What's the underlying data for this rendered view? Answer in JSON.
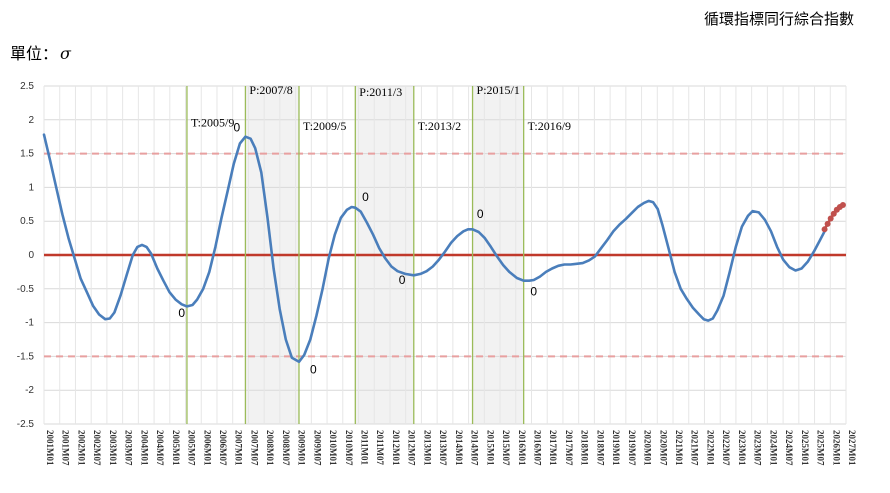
{
  "header": {
    "title": "循環指標同行綜合指數",
    "unit_label": "單位：",
    "unit_symbol": "σ"
  },
  "chart_data": {
    "type": "line",
    "ylim": [
      -2.5,
      2.5
    ],
    "yticks": [
      "2.5",
      "2",
      "1.5",
      "1",
      "0.5",
      "0",
      "-0.5",
      "-1",
      "-1.5",
      "-2",
      "-2.5"
    ],
    "grid": true,
    "x_labels": [
      "2001M01",
      "2001M07",
      "2002M01",
      "2002M07",
      "2003M01",
      "2003M07",
      "2004M01",
      "2004M07",
      "2005M01",
      "2005M07",
      "2006M01",
      "2006M07",
      "2007M01",
      "2007M07",
      "2008M01",
      "2008M07",
      "2009M01",
      "2009M07",
      "2010M01",
      "2010M07",
      "2011M01",
      "2011M07",
      "2012M01",
      "2012M07",
      "2013M01",
      "2013M07",
      "2014M01",
      "2014M07",
      "2015M01",
      "2015M07",
      "2016M01",
      "2016M07",
      "2017M01",
      "2017M07",
      "2018M01",
      "2018M07",
      "2019M01",
      "2019M07",
      "2020M01",
      "2020M07",
      "2021M01",
      "2021M07",
      "2022M01",
      "2022M07",
      "2023M01",
      "2023M07",
      "2024M01",
      "2024M07",
      "2025M01",
      "2025M07",
      "2026M01",
      "2027M01"
    ],
    "reference_lines": [
      {
        "y": 0,
        "color": "#c0392b",
        "style": "solid"
      },
      {
        "y": 1.5,
        "color": "#e8a0a0",
        "style": "dashed"
      },
      {
        "y": -1.5,
        "color": "#e8a0a0",
        "style": "dashed"
      }
    ],
    "shaded_periods": [
      {
        "from": 2007.58,
        "to": 2009.33
      },
      {
        "from": 2011.17,
        "to": 2013.08
      },
      {
        "from": 2015.0,
        "to": 2016.67
      }
    ],
    "turning_points": [
      {
        "x": 2005.67,
        "label": "T:2005/9",
        "label_y": 1.9
      },
      {
        "x": 2007.58,
        "label": "P:2007/8",
        "label_y": 2.38
      },
      {
        "x": 2009.33,
        "label": "T:2009/5",
        "label_y": 1.85
      },
      {
        "x": 2011.17,
        "label": "P:2011/3",
        "label_y": 2.35
      },
      {
        "x": 2013.08,
        "label": "T:2013/2",
        "label_y": 1.85
      },
      {
        "x": 2015.0,
        "label": "P:2015/1",
        "label_y": 2.38
      },
      {
        "x": 2016.67,
        "label": "T:2016/9",
        "label_y": 1.85
      }
    ],
    "point_labels": [
      {
        "x": 2005.5,
        "y": -0.92,
        "text": "0"
      },
      {
        "x": 2007.3,
        "y": 1.83,
        "text": "0"
      },
      {
        "x": 2009.8,
        "y": -1.75,
        "text": "0"
      },
      {
        "x": 2011.5,
        "y": 0.8,
        "text": "0"
      },
      {
        "x": 2012.7,
        "y": -0.43,
        "text": "0"
      },
      {
        "x": 2015.25,
        "y": 0.55,
        "text": "0"
      },
      {
        "x": 2017.0,
        "y": -0.6,
        "text": "0"
      }
    ],
    "series": [
      {
        "color": "#4a7ebb",
        "points": [
          [
            2001.0,
            1.78
          ],
          [
            2001.2,
            1.4
          ],
          [
            2001.4,
            1.0
          ],
          [
            2001.6,
            0.6
          ],
          [
            2001.8,
            0.25
          ],
          [
            2002.0,
            -0.05
          ],
          [
            2002.2,
            -0.35
          ],
          [
            2002.4,
            -0.55
          ],
          [
            2002.6,
            -0.75
          ],
          [
            2002.8,
            -0.88
          ],
          [
            2003.0,
            -0.95
          ],
          [
            2003.15,
            -0.94
          ],
          [
            2003.3,
            -0.85
          ],
          [
            2003.5,
            -0.6
          ],
          [
            2003.7,
            -0.3
          ],
          [
            2003.9,
            0.0
          ],
          [
            2004.05,
            0.12
          ],
          [
            2004.2,
            0.15
          ],
          [
            2004.35,
            0.12
          ],
          [
            2004.5,
            0.02
          ],
          [
            2004.7,
            -0.2
          ],
          [
            2004.9,
            -0.38
          ],
          [
            2005.1,
            -0.55
          ],
          [
            2005.3,
            -0.66
          ],
          [
            2005.5,
            -0.73
          ],
          [
            2005.67,
            -0.76
          ],
          [
            2005.85,
            -0.74
          ],
          [
            2006.0,
            -0.66
          ],
          [
            2006.2,
            -0.5
          ],
          [
            2006.4,
            -0.25
          ],
          [
            2006.6,
            0.12
          ],
          [
            2006.8,
            0.55
          ],
          [
            2007.0,
            0.95
          ],
          [
            2007.2,
            1.35
          ],
          [
            2007.4,
            1.65
          ],
          [
            2007.58,
            1.75
          ],
          [
            2007.75,
            1.72
          ],
          [
            2007.9,
            1.58
          ],
          [
            2008.1,
            1.22
          ],
          [
            2008.3,
            0.55
          ],
          [
            2008.5,
            -0.2
          ],
          [
            2008.7,
            -0.8
          ],
          [
            2008.9,
            -1.25
          ],
          [
            2009.1,
            -1.52
          ],
          [
            2009.33,
            -1.58
          ],
          [
            2009.5,
            -1.48
          ],
          [
            2009.7,
            -1.25
          ],
          [
            2009.9,
            -0.9
          ],
          [
            2010.1,
            -0.5
          ],
          [
            2010.3,
            -0.05
          ],
          [
            2010.5,
            0.3
          ],
          [
            2010.7,
            0.55
          ],
          [
            2010.9,
            0.67
          ],
          [
            2011.05,
            0.71
          ],
          [
            2011.17,
            0.7
          ],
          [
            2011.35,
            0.64
          ],
          [
            2011.55,
            0.48
          ],
          [
            2011.75,
            0.3
          ],
          [
            2011.95,
            0.1
          ],
          [
            2012.15,
            -0.05
          ],
          [
            2012.35,
            -0.17
          ],
          [
            2012.55,
            -0.24
          ],
          [
            2012.8,
            -0.28
          ],
          [
            2013.08,
            -0.3
          ],
          [
            2013.3,
            -0.28
          ],
          [
            2013.5,
            -0.24
          ],
          [
            2013.7,
            -0.17
          ],
          [
            2013.9,
            -0.07
          ],
          [
            2014.1,
            0.05
          ],
          [
            2014.3,
            0.18
          ],
          [
            2014.5,
            0.28
          ],
          [
            2014.7,
            0.35
          ],
          [
            2014.85,
            0.38
          ],
          [
            2015.0,
            0.38
          ],
          [
            2015.2,
            0.34
          ],
          [
            2015.4,
            0.25
          ],
          [
            2015.6,
            0.12
          ],
          [
            2015.8,
            -0.02
          ],
          [
            2016.0,
            -0.15
          ],
          [
            2016.2,
            -0.25
          ],
          [
            2016.45,
            -0.34
          ],
          [
            2016.67,
            -0.38
          ],
          [
            2016.85,
            -0.38
          ],
          [
            2017.0,
            -0.37
          ],
          [
            2017.2,
            -0.32
          ],
          [
            2017.4,
            -0.25
          ],
          [
            2017.6,
            -0.2
          ],
          [
            2017.8,
            -0.16
          ],
          [
            2018.0,
            -0.14
          ],
          [
            2018.2,
            -0.14
          ],
          [
            2018.4,
            -0.13
          ],
          [
            2018.6,
            -0.12
          ],
          [
            2018.8,
            -0.08
          ],
          [
            2019.0,
            -0.02
          ],
          [
            2019.2,
            0.1
          ],
          [
            2019.4,
            0.22
          ],
          [
            2019.6,
            0.35
          ],
          [
            2019.8,
            0.45
          ],
          [
            2020.0,
            0.53
          ],
          [
            2020.2,
            0.62
          ],
          [
            2020.4,
            0.71
          ],
          [
            2020.6,
            0.77
          ],
          [
            2020.75,
            0.8
          ],
          [
            2020.9,
            0.78
          ],
          [
            2021.05,
            0.68
          ],
          [
            2021.2,
            0.45
          ],
          [
            2021.4,
            0.1
          ],
          [
            2021.6,
            -0.25
          ],
          [
            2021.8,
            -0.5
          ],
          [
            2022.0,
            -0.65
          ],
          [
            2022.2,
            -0.78
          ],
          [
            2022.4,
            -0.88
          ],
          [
            2022.55,
            -0.95
          ],
          [
            2022.7,
            -0.97
          ],
          [
            2022.85,
            -0.94
          ],
          [
            2023.0,
            -0.82
          ],
          [
            2023.2,
            -0.6
          ],
          [
            2023.4,
            -0.25
          ],
          [
            2023.6,
            0.12
          ],
          [
            2023.8,
            0.42
          ],
          [
            2024.0,
            0.58
          ],
          [
            2024.15,
            0.65
          ],
          [
            2024.35,
            0.63
          ],
          [
            2024.55,
            0.52
          ],
          [
            2024.75,
            0.35
          ],
          [
            2024.95,
            0.12
          ],
          [
            2025.15,
            -0.07
          ],
          [
            2025.35,
            -0.18
          ],
          [
            2025.55,
            -0.23
          ],
          [
            2025.75,
            -0.2
          ],
          [
            2025.95,
            -0.1
          ],
          [
            2026.15,
            0.05
          ],
          [
            2026.35,
            0.22
          ],
          [
            2026.5,
            0.35
          ]
        ]
      },
      {
        "color": "#c0504d",
        "markers": true,
        "points": [
          [
            2026.5,
            0.38
          ],
          [
            2026.6,
            0.46
          ],
          [
            2026.7,
            0.54
          ],
          [
            2026.8,
            0.61
          ],
          [
            2026.9,
            0.67
          ],
          [
            2027.0,
            0.71
          ],
          [
            2027.1,
            0.74
          ]
        ]
      }
    ]
  }
}
